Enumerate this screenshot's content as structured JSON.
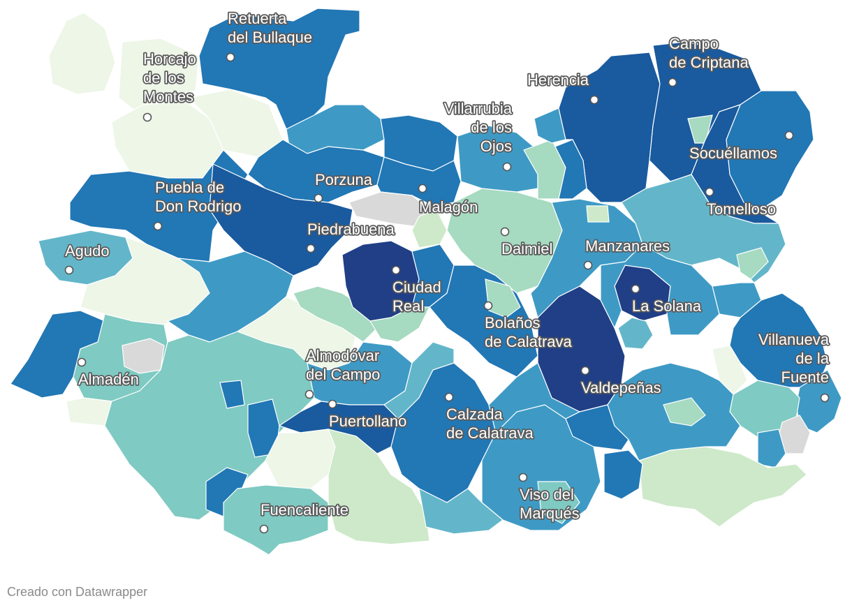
{
  "map": {
    "palette": {
      "c1": "#edf6e7",
      "c2": "#cde9c9",
      "c3": "#a6dac1",
      "c4": "#7fcac2",
      "c5": "#63b6c9",
      "c6": "#3e9ac5",
      "c7": "#2277b5",
      "c8": "#1a5a9e",
      "c9": "#203f86",
      "nodata": "#d9d9d9"
    },
    "cities": [
      {
        "id": "retuerta",
        "label_lines": [
          "Retuerta",
          "del Bullaque"
        ]
      },
      {
        "id": "horcajo",
        "label_lines": [
          "Horcajo",
          "de los",
          "Montes"
        ]
      },
      {
        "id": "campo-criptana",
        "label_lines": [
          "Campo",
          "de Criptana"
        ]
      },
      {
        "id": "herencia",
        "label_lines": [
          "Herencia"
        ]
      },
      {
        "id": "villarrubia",
        "label_lines": [
          "Villarrubia",
          "de los",
          "Ojos"
        ]
      },
      {
        "id": "socuellamos",
        "label_lines": [
          "Socuéllamos"
        ]
      },
      {
        "id": "porzuna",
        "label_lines": [
          "Porzuna"
        ]
      },
      {
        "id": "malagon",
        "label_lines": [
          "Malagón"
        ]
      },
      {
        "id": "tomelloso",
        "label_lines": [
          "Tomelloso"
        ]
      },
      {
        "id": "puebla",
        "label_lines": [
          "Puebla de",
          "Don Rodrigo"
        ]
      },
      {
        "id": "piedrabuena",
        "label_lines": [
          "Piedrabuena"
        ]
      },
      {
        "id": "daimiel",
        "label_lines": [
          "Daimiel"
        ]
      },
      {
        "id": "manzanares",
        "label_lines": [
          "Manzanares"
        ]
      },
      {
        "id": "agudo",
        "label_lines": [
          "Agudo"
        ]
      },
      {
        "id": "ciudad-real",
        "label_lines": [
          "Ciudad",
          "Real"
        ]
      },
      {
        "id": "la-solana",
        "label_lines": [
          "La Solana"
        ]
      },
      {
        "id": "bolanos",
        "label_lines": [
          "Bolaños",
          "de Calatrava"
        ]
      },
      {
        "id": "villanueva",
        "label_lines": [
          "Villanueva",
          "de la",
          "Fuente"
        ]
      },
      {
        "id": "almaden",
        "label_lines": [
          "Almadén"
        ]
      },
      {
        "id": "almodovar",
        "label_lines": [
          "Almodóvar",
          "del Campo"
        ]
      },
      {
        "id": "valdepenas",
        "label_lines": [
          "Valdepeñas"
        ]
      },
      {
        "id": "puertollano",
        "label_lines": [
          "Puertollano"
        ]
      },
      {
        "id": "calzada",
        "label_lines": [
          "Calzada",
          "de Calatrava"
        ]
      },
      {
        "id": "viso",
        "label_lines": [
          "Viso del",
          "Marqués"
        ]
      },
      {
        "id": "fuencaliente",
        "label_lines": [
          "Fuencaliente"
        ]
      }
    ]
  },
  "footer": {
    "credit": "Creado con Datawrapper"
  }
}
